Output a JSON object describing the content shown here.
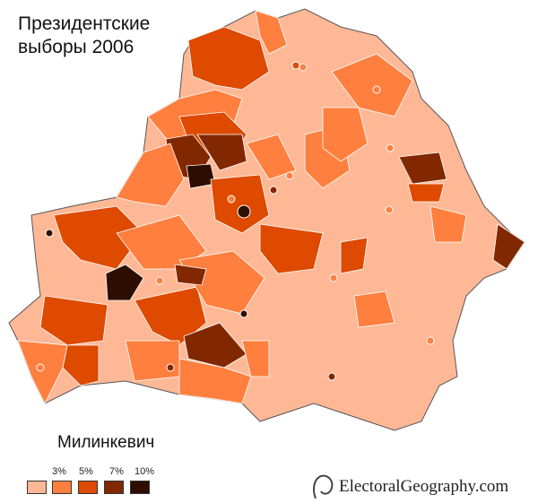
{
  "title_line1": "Президентские",
  "title_line2": "выборы  2006",
  "candidate": "Милинкевич",
  "legend": {
    "labels": [
      "3%",
      "5%",
      "7%",
      "10%"
    ],
    "colors": [
      "#FFB896",
      "#FF7F3F",
      "#DD4A00",
      "#822800",
      "#2E0E00"
    ]
  },
  "credit": "ElectoralGeography.com"
}
